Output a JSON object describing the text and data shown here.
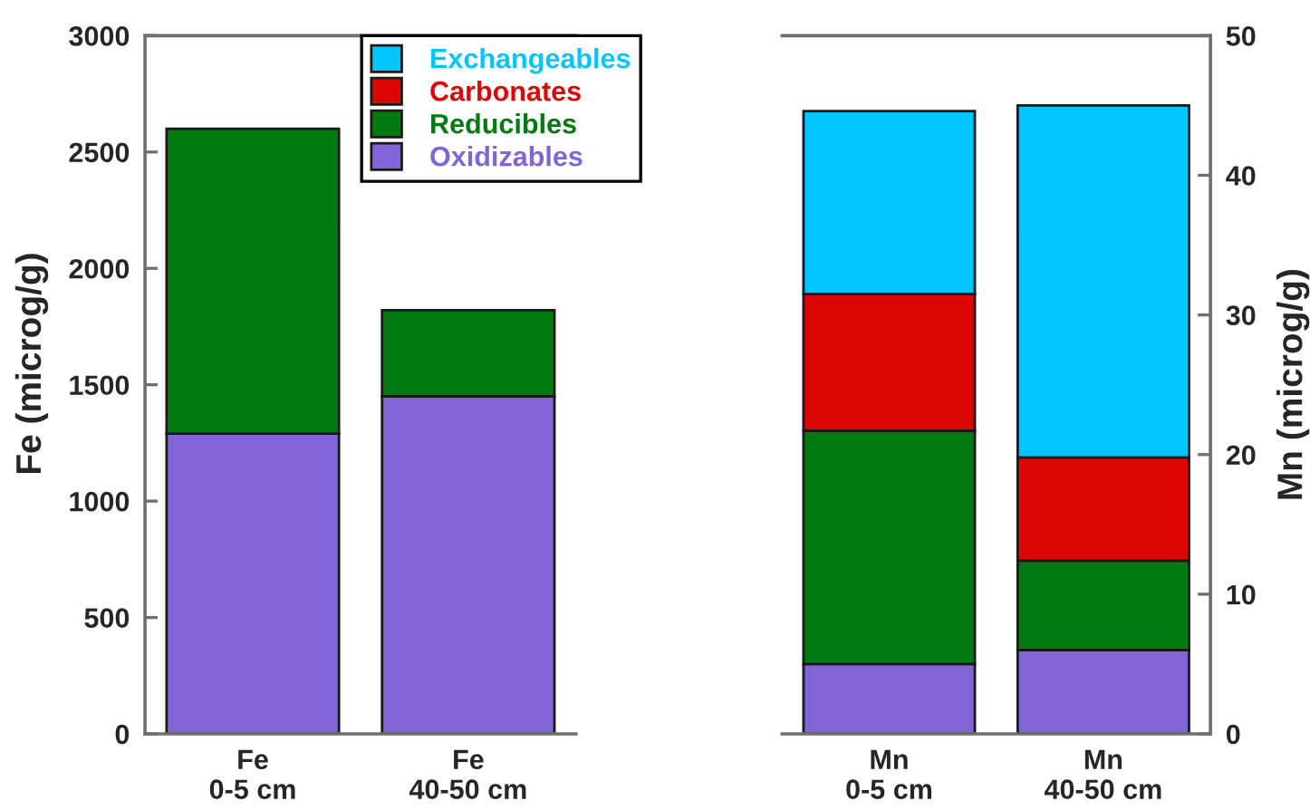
{
  "chart_data": [
    {
      "type": "bar",
      "stacked": true,
      "categories": [
        "Fe\n0-5 cm",
        "Fe\n40-50 cm"
      ],
      "ylabel": "Fe (microg/g)",
      "ylim": [
        0,
        3000
      ],
      "yticks": [
        0,
        500,
        1000,
        1500,
        2000,
        2500,
        3000
      ],
      "legend": "top right",
      "series": [
        {
          "name": "Oxidizables",
          "color": "#8064d8",
          "values": [
            1290,
            1450
          ]
        },
        {
          "name": "Reducibles",
          "color": "#027a12",
          "values": [
            1310,
            370
          ]
        },
        {
          "name": "Carbonates",
          "color": "#dd0806",
          "values": [
            null,
            null
          ]
        },
        {
          "name": "Exchangeables",
          "color": "#00c5ff",
          "values": [
            null,
            null
          ]
        }
      ]
    },
    {
      "type": "bar",
      "stacked": true,
      "categories": [
        "Mn\n0-5 cm",
        "Mn\n40-50 cm"
      ],
      "y2label": "Mn (microg/g)",
      "y2lim": [
        0,
        50
      ],
      "y2ticks": [
        0,
        10,
        20,
        30,
        40,
        50
      ],
      "series": [
        {
          "color": "#8064d8",
          "axis": "y2",
          "values": [
            5.0,
            6.0
          ]
        },
        {
          "color": "#027a12",
          "axis": "y2",
          "values": [
            16.7,
            6.4
          ]
        },
        {
          "color": "#dd0806",
          "axis": "y2",
          "values": [
            9.8,
            7.4
          ]
        },
        {
          "color": "#00c5ff",
          "axis": "y2",
          "values": [
            13.1,
            25.2
          ]
        }
      ]
    }
  ]
}
